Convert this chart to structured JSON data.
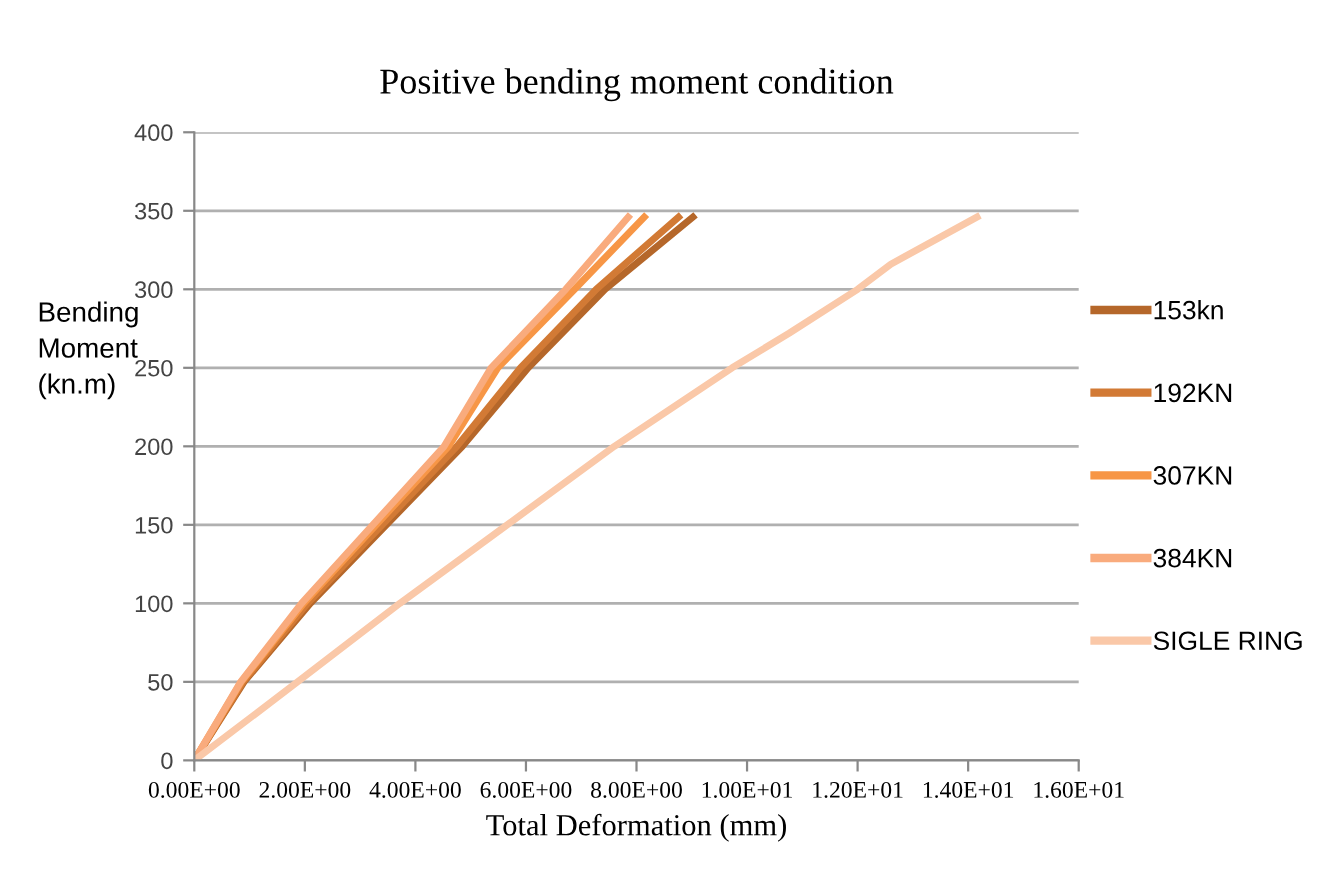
{
  "chart_data": {
    "type": "line",
    "title": "Positive bending moment condition",
    "xlabel": "Total Deformation (mm)",
    "ylabel": "Bending\nMoment\n(kn.m)",
    "xlim": [
      0,
      16
    ],
    "ylim": [
      0,
      400
    ],
    "xticks": [
      {
        "value": 0,
        "label": "0.00E+00"
      },
      {
        "value": 2,
        "label": "2.00E+00"
      },
      {
        "value": 4,
        "label": "4.00E+00"
      },
      {
        "value": 6,
        "label": "6.00E+00"
      },
      {
        "value": 8,
        "label": "8.00E+00"
      },
      {
        "value": 10,
        "label": "1.00E+01"
      },
      {
        "value": 12,
        "label": "1.20E+01"
      },
      {
        "value": 14,
        "label": "1.40E+01"
      },
      {
        "value": 16,
        "label": "1.60E+01"
      }
    ],
    "yticks": [
      0,
      50,
      100,
      150,
      200,
      250,
      300,
      350,
      400
    ],
    "grid": "y",
    "legend": "right",
    "marker": "none",
    "line_style": "solid",
    "series": [
      {
        "name": "153kn",
        "color": "#b5672a",
        "x": [
          0,
          0.9,
          2.1,
          4.85,
          6.04,
          7.43,
          9.02
        ],
        "values": [
          0,
          50,
          100,
          200,
          250,
          300,
          346
        ]
      },
      {
        "name": "192KN",
        "color": "#d27a35",
        "x": [
          0,
          0.88,
          2.05,
          4.75,
          5.9,
          7.27,
          8.76
        ],
        "values": [
          0,
          50,
          100,
          200,
          250,
          300,
          346
        ]
      },
      {
        "name": "307KN",
        "color": "#f79646",
        "x": [
          0,
          0.85,
          1.98,
          4.6,
          5.49,
          6.88,
          8.14
        ],
        "values": [
          0,
          50,
          100,
          200,
          250,
          300,
          346
        ]
      },
      {
        "name": "384KN",
        "color": "#f9ab7d",
        "x": [
          0,
          0.84,
          1.94,
          4.52,
          5.37,
          6.72,
          7.85
        ],
        "values": [
          0,
          50,
          100,
          200,
          250,
          300,
          346
        ]
      },
      {
        "name": "SIGLE RING",
        "color": "#fac8a8",
        "x": [
          0,
          1.87,
          3.72,
          5.66,
          7.6,
          9.73,
          10.76,
          12.0,
          12.6,
          14.16
        ],
        "values": [
          0,
          50,
          100,
          150,
          200,
          250,
          272,
          300,
          316,
          346
        ]
      }
    ]
  }
}
